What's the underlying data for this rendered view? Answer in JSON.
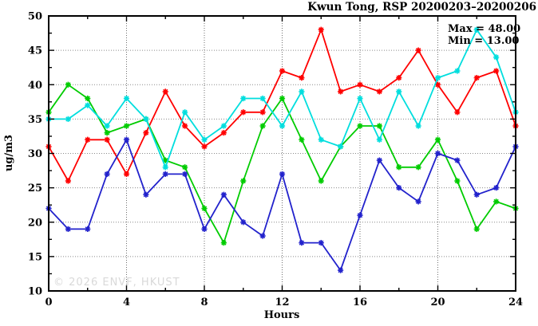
{
  "header": {
    "title": "Kwun Tong, RSP 20200203–20200206"
  },
  "annotations": {
    "max_label": "Max = 48.00",
    "min_label": "Min = 13.00"
  },
  "watermark": "© 2026 ENVF, HKUST",
  "chart_data": {
    "type": "line",
    "title": "Kwun Tong, RSP 20200203–20200206",
    "xlabel": "Hours",
    "ylabel": "ug/m3",
    "xlim": [
      0,
      24
    ],
    "ylim": [
      10,
      50
    ],
    "x_major_ticks": [
      0,
      4,
      8,
      12,
      16,
      20,
      24
    ],
    "x_minor_ticks": [
      2,
      6,
      10,
      14,
      18,
      22
    ],
    "y_major_ticks": [
      10,
      15,
      20,
      25,
      30,
      35,
      40,
      45,
      50
    ],
    "y_minor_ticks": [
      12.5,
      17.5,
      22.5,
      27.5,
      32.5,
      37.5,
      42.5,
      47.5
    ],
    "grid": "dotted gridlines at interior major ticks, ticks mirrored on all four sides",
    "legend_position": "none",
    "marker": "asterisk",
    "x": [
      0,
      1,
      2,
      3,
      4,
      5,
      6,
      7,
      8,
      9,
      10,
      11,
      12,
      13,
      14,
      15,
      16,
      17,
      18,
      19,
      20,
      21,
      22,
      23,
      24
    ],
    "series": [
      {
        "name": "red",
        "color": "#ff0000",
        "values": [
          31,
          26,
          32,
          32,
          27,
          33,
          39,
          34,
          31,
          33,
          36,
          36,
          42,
          41,
          48,
          39,
          40,
          39,
          41,
          45,
          40,
          36,
          41,
          42,
          34
        ]
      },
      {
        "name": "green",
        "color": "#00cc00",
        "values": [
          36,
          40,
          38,
          33,
          34,
          35,
          29,
          28,
          22,
          17,
          26,
          34,
          38,
          32,
          26,
          31,
          34,
          34,
          28,
          28,
          32,
          26,
          19,
          23,
          22
        ]
      },
      {
        "name": "blue",
        "color": "#2222cc",
        "values": [
          22,
          19,
          19,
          27,
          32,
          24,
          27,
          27,
          19,
          24,
          20,
          18,
          27,
          17,
          17,
          13,
          21,
          29,
          25,
          23,
          30,
          29,
          24,
          25,
          31
        ]
      },
      {
        "name": "cyan",
        "color": "#00dede",
        "values": [
          35,
          35,
          37,
          34,
          38,
          35,
          28,
          36,
          32,
          34,
          38,
          38,
          34,
          39,
          32,
          31,
          38,
          32,
          39,
          34,
          41,
          42,
          48,
          44,
          36
        ]
      }
    ],
    "stats": {
      "max": 48.0,
      "min": 13.0
    }
  }
}
